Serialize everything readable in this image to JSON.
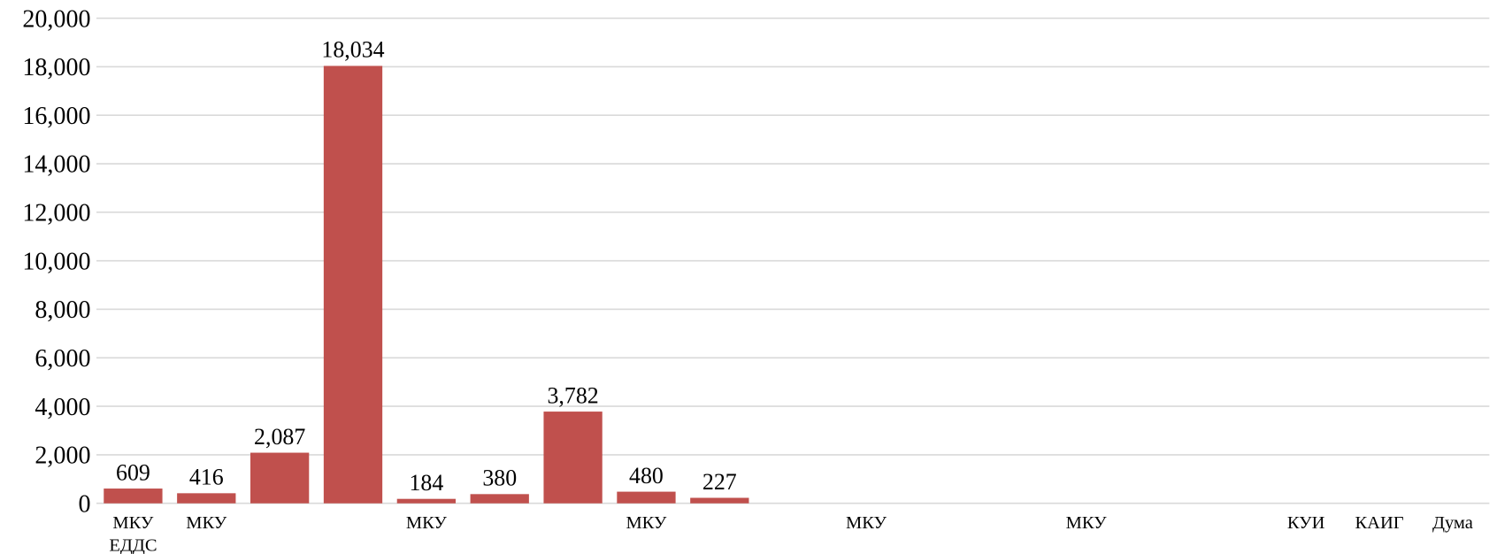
{
  "chart_data": {
    "type": "bar",
    "categories": [
      "МКУ ЕДДС",
      "МКУ",
      null,
      null,
      "МКУ",
      null,
      null,
      "МКУ",
      null,
      null,
      "МКУ",
      null,
      null,
      "МКУ",
      null,
      null,
      "КУИ",
      "КАИГ",
      "Дума"
    ],
    "values": [
      609,
      416,
      2087,
      18034,
      184,
      380,
      3782,
      480,
      227,
      null,
      null,
      null,
      null,
      null,
      null,
      null,
      null,
      null,
      null
    ],
    "value_labels": [
      "609",
      "416",
      "2,087",
      "18,034",
      "184",
      "380",
      "3,782",
      "480",
      "227",
      null,
      null,
      null,
      null,
      null,
      null,
      null,
      null,
      null,
      null
    ],
    "color": "#c0504d",
    "ylim": [
      0,
      20000
    ],
    "yticks": [
      0,
      {
        "value": 2000,
        "label": "2,000"
      },
      {
        "value": 4000,
        "label": "4,000"
      },
      {
        "value": 6000,
        "label": "6,000"
      },
      {
        "value": 8000,
        "label": "8,000"
      },
      {
        "value": 10000,
        "label": "10,000"
      },
      {
        "value": 12000,
        "label": "12,000"
      },
      {
        "value": 14000,
        "label": "14,000"
      },
      {
        "value": 16000,
        "label": "16,000"
      },
      {
        "value": 18000,
        "label": "18,000"
      },
      {
        "value": 20000,
        "label": "20,000"
      }
    ],
    "grid": true
  }
}
